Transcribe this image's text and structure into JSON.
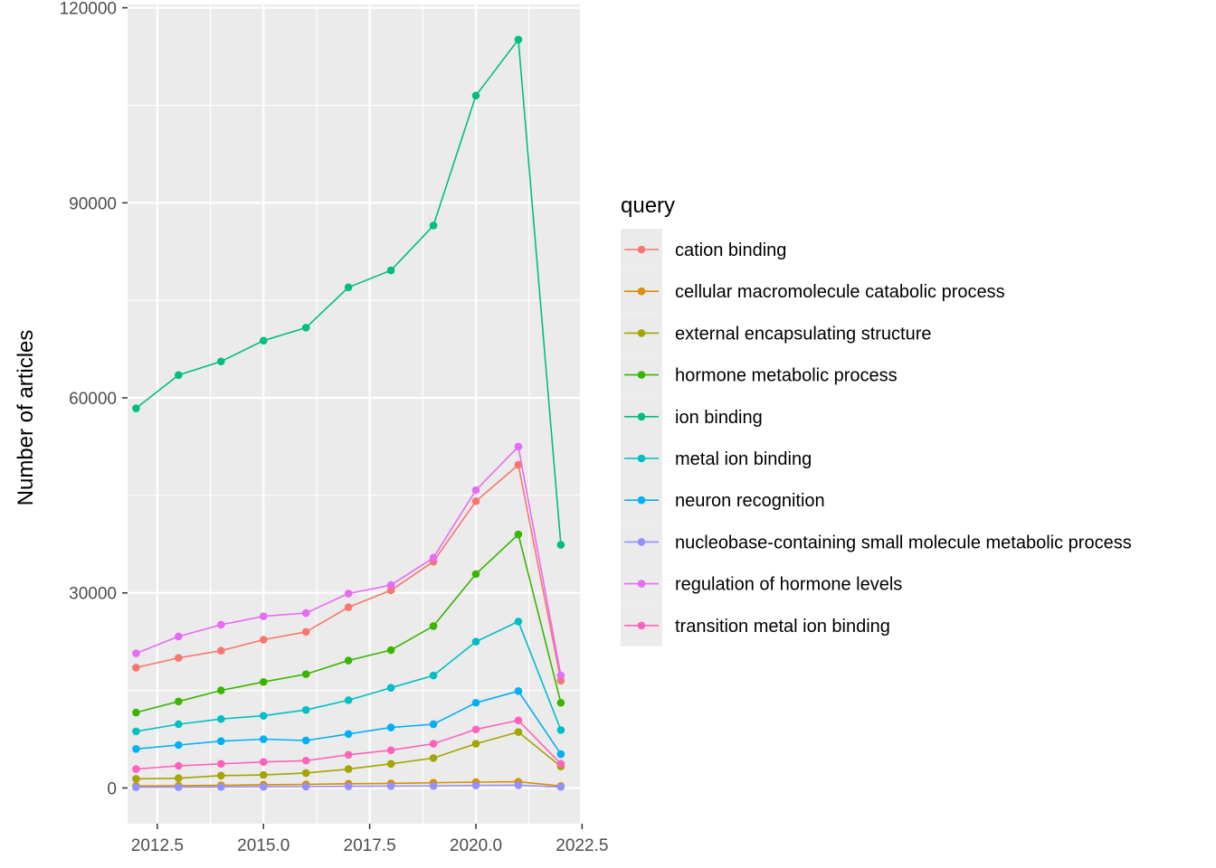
{
  "chart_data": {
    "type": "line",
    "title": "",
    "xlabel": "",
    "ylabel": "Number of articles",
    "xlim": [
      2011.8,
      2022.45
    ],
    "ylim": [
      -5500,
      120500
    ],
    "x_ticks": [
      2012.5,
      2015.0,
      2017.5,
      2020.0,
      2022.5
    ],
    "x_tick_labels": [
      "2012.5",
      "2015.0",
      "2017.5",
      "2020.0",
      "2022.5"
    ],
    "y_ticks": [
      0,
      30000,
      60000,
      90000,
      120000
    ],
    "y_tick_labels": [
      "0",
      "30000",
      "60000",
      "90000",
      "120000"
    ],
    "grid": true,
    "legend_title": "query",
    "legend_position": "right",
    "x": [
      2012,
      2013,
      2014,
      2015,
      2016,
      2017,
      2018,
      2019,
      2020,
      2021,
      2022
    ],
    "series": [
      {
        "name": "cation binding",
        "color": "#F8766D",
        "values": [
          18500,
          20000,
          21100,
          22800,
          24000,
          27800,
          30400,
          34800,
          44100,
          49700,
          16500
        ]
      },
      {
        "name": "cellular macromolecule catabolic process",
        "color": "#D89000",
        "values": [
          300,
          350,
          400,
          500,
          550,
          650,
          700,
          800,
          900,
          950,
          300
        ]
      },
      {
        "name": "external encapsulating structure",
        "color": "#A3A500",
        "values": [
          1400,
          1500,
          1900,
          2000,
          2300,
          2900,
          3700,
          4600,
          6800,
          8600,
          3300
        ]
      },
      {
        "name": "hormone metabolic process",
        "color": "#39B600",
        "values": [
          11600,
          13300,
          15000,
          16300,
          17500,
          19600,
          21200,
          24900,
          32900,
          39000,
          13100
        ]
      },
      {
        "name": "ion binding",
        "color": "#00BF7D",
        "values": [
          58400,
          63500,
          65600,
          68800,
          70800,
          77000,
          79600,
          86500,
          106500,
          115100,
          37400
        ]
      },
      {
        "name": "metal ion binding",
        "color": "#00BFC4",
        "values": [
          8700,
          9800,
          10600,
          11100,
          12000,
          13500,
          15400,
          17300,
          22500,
          25600,
          8900
        ]
      },
      {
        "name": "neuron recognition",
        "color": "#00B0F6",
        "values": [
          6000,
          6600,
          7200,
          7500,
          7300,
          8300,
          9300,
          9800,
          13100,
          14900,
          5200
        ]
      },
      {
        "name": "nucleobase-containing small molecule metabolic process",
        "color": "#9590FF",
        "values": [
          100,
          120,
          150,
          180,
          200,
          250,
          280,
          320,
          380,
          420,
          150
        ]
      },
      {
        "name": "regulation of hormone levels",
        "color": "#E76BF3",
        "values": [
          20700,
          23300,
          25100,
          26400,
          26900,
          29900,
          31200,
          35400,
          45800,
          52500,
          17300
        ]
      },
      {
        "name": "transition metal ion binding",
        "color": "#FF62BC",
        "values": [
          2900,
          3400,
          3700,
          4000,
          4200,
          5100,
          5800,
          6800,
          9000,
          10400,
          3700
        ]
      }
    ]
  }
}
